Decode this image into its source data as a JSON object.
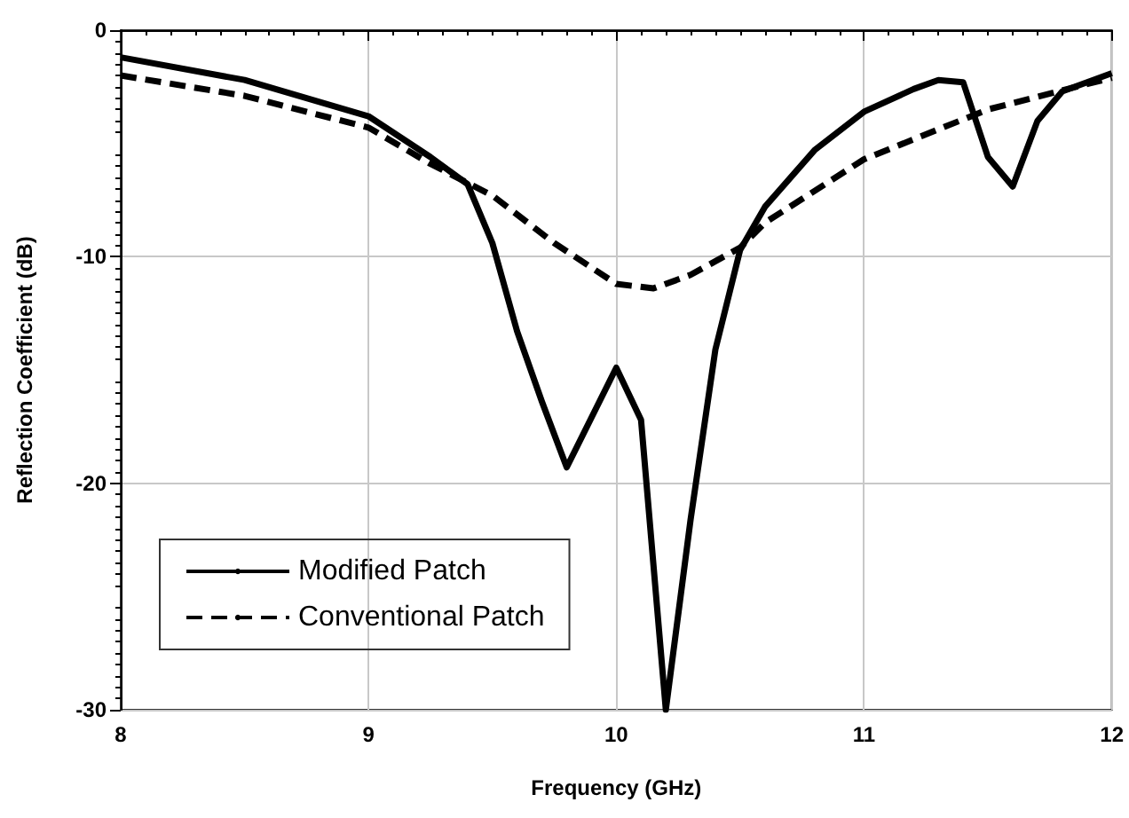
{
  "chart_data": {
    "type": "line",
    "xlabel": "Frequency (GHz)",
    "ylabel": "Reflection Coefficient (dB)",
    "xlim": [
      8,
      12
    ],
    "xticks": [
      8,
      9,
      10,
      11,
      12
    ],
    "ylim": [
      -30,
      0
    ],
    "yticks": [
      -30,
      -20,
      -10,
      0
    ],
    "grid": true,
    "legend": "bottom left",
    "marker": "none",
    "series": [
      {
        "name": "Modified Patch",
        "color": "#000000",
        "line_style": "solid",
        "x": [
          8,
          8.5,
          9,
          9.25,
          9.4,
          9.5,
          9.6,
          9.7,
          9.8,
          10,
          10.1,
          10.2,
          10.3,
          10.4,
          10.5,
          10.6,
          10.8,
          11,
          11.2,
          11.3,
          11.4,
          11.5,
          11.6,
          11.7,
          11.8,
          12
        ],
        "values": [
          -1.2,
          -2.2,
          -3.8,
          -5.6,
          -6.8,
          -9.4,
          -13.3,
          -16.4,
          -19.3,
          -14.9,
          -17.2,
          -30,
          -21.6,
          -14.1,
          -9.7,
          -7.8,
          -5.3,
          -3.6,
          -2.6,
          -2.2,
          -2.3,
          -5.6,
          -6.9,
          -4,
          -2.7,
          -1.9
        ]
      },
      {
        "name": "Conventional Patch",
        "color": "#000000",
        "line_style": "dashed",
        "x": [
          8,
          8.5,
          9,
          9.25,
          9.5,
          9.75,
          10,
          10.15,
          10.3,
          10.5,
          10.6,
          11,
          11.5,
          12
        ],
        "values": [
          -2,
          -2.9,
          -4.3,
          -5.9,
          -7.3,
          -9.4,
          -11.2,
          -11.4,
          -10.8,
          -9.6,
          -8.5,
          -5.7,
          -3.5,
          -2.1
        ]
      }
    ]
  }
}
